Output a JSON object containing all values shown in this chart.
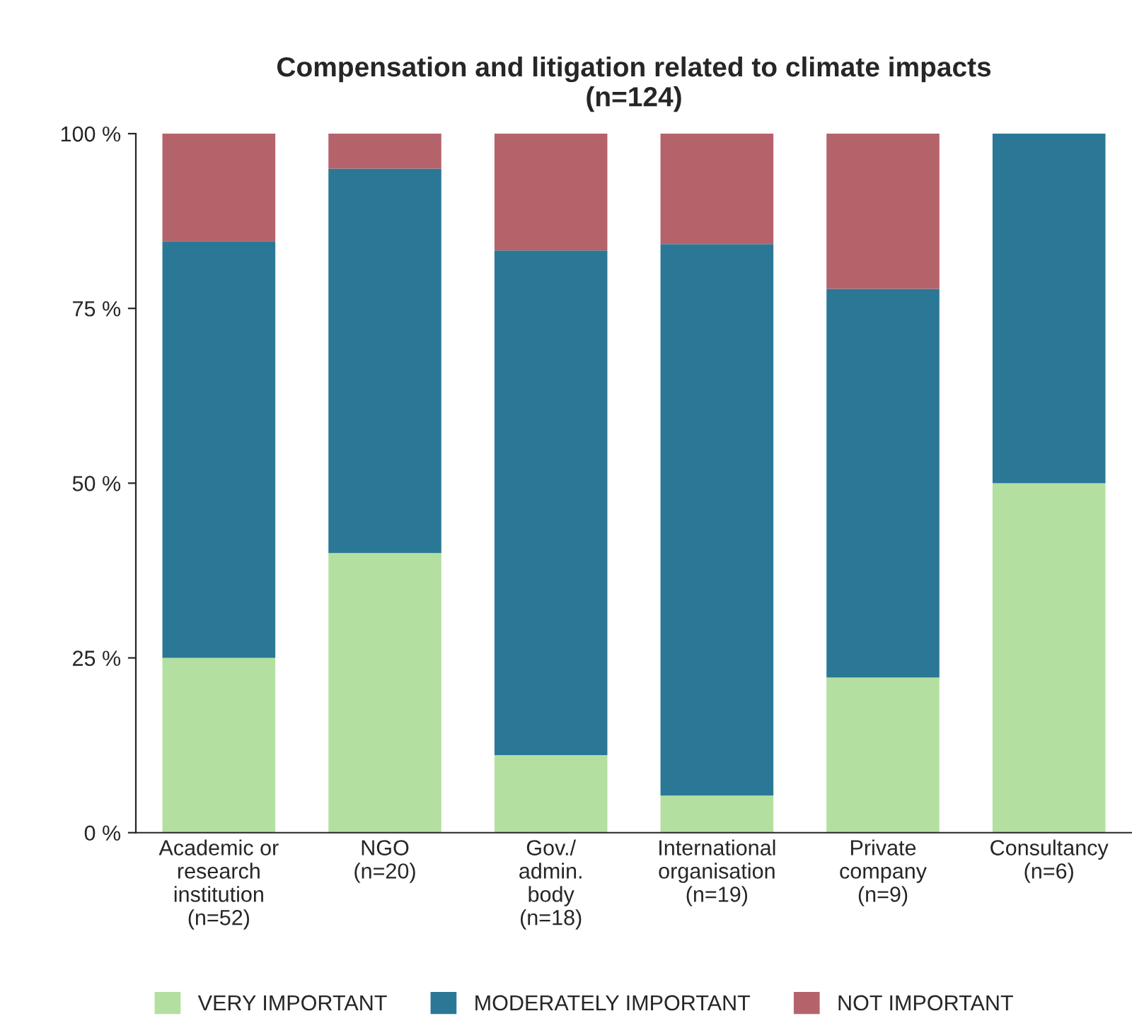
{
  "chart_data": {
    "type": "bar",
    "title": "Compensation and litigation related to climate impacts\n(n=124)",
    "stacked": true,
    "categories": [
      "Academic or\nresearch\ninstitution\n(n=52)",
      "NGO\n(n=20)",
      "Gov./\nadmin.\nbody\n(n=18)",
      "International\norganisation\n(n=19)",
      "Private\ncompany\n(n=9)",
      "Consultancy\n(n=6)"
    ],
    "series": [
      {
        "name": "VERY IMPORTANT",
        "color": "#b3e0a0",
        "values": [
          25,
          40,
          11.1,
          5.3,
          22.2,
          50
        ]
      },
      {
        "name": "MODERATELY IMPORTANT",
        "color": "#2b7896",
        "values": [
          59.6,
          55,
          72.2,
          78.9,
          55.6,
          50
        ]
      },
      {
        "name": "NOT IMPORTANT",
        "color": "#b5636b",
        "values": [
          15.4,
          5,
          16.7,
          15.8,
          22.2,
          0
        ]
      }
    ],
    "ylim": [
      0,
      100
    ],
    "yticks": [
      {
        "value": 0,
        "label": "0 %"
      },
      {
        "value": 25,
        "label": "25 %"
      },
      {
        "value": 50,
        "label": "50 %"
      },
      {
        "value": 75,
        "label": "75 %"
      },
      {
        "value": 100,
        "label": "100 %"
      }
    ],
    "grid": false,
    "legend": "bottom"
  }
}
